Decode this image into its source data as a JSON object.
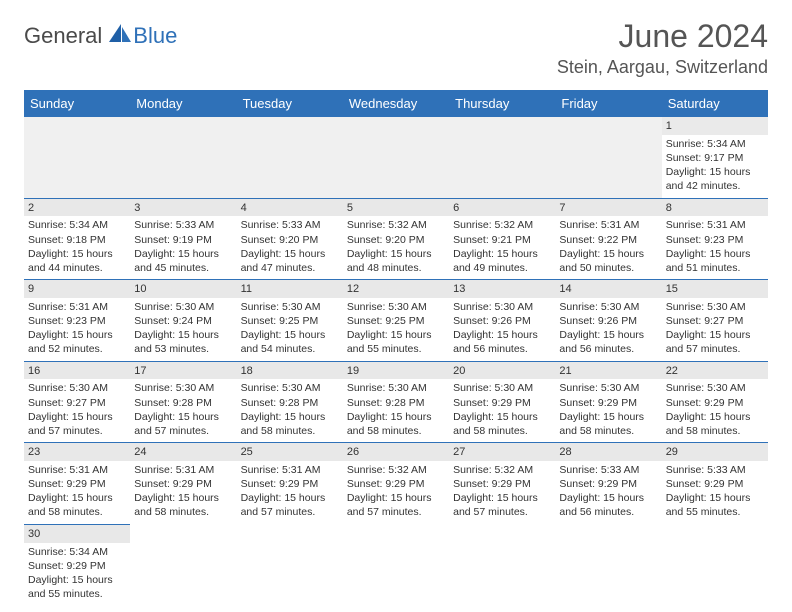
{
  "logo": {
    "text1": "General",
    "text2": "Blue"
  },
  "title": "June 2024",
  "location": "Stein, Aargau, Switzerland",
  "colors": {
    "header_bg": "#2f71b8",
    "header_fg": "#ffffff",
    "rule": "#2f71b8",
    "dn_bg": "#e8e8e8"
  },
  "typography": {
    "title_size": 32,
    "location_size": 18,
    "th_size": 13,
    "cell_size": 10.5
  },
  "weekdays": [
    "Sunday",
    "Monday",
    "Tuesday",
    "Wednesday",
    "Thursday",
    "Friday",
    "Saturday"
  ],
  "weeks": [
    [
      null,
      null,
      null,
      null,
      null,
      null,
      {
        "n": "1",
        "sr": "Sunrise: 5:34 AM",
        "ss": "Sunset: 9:17 PM",
        "d1": "Daylight: 15 hours",
        "d2": "and 42 minutes."
      }
    ],
    [
      {
        "n": "2",
        "sr": "Sunrise: 5:34 AM",
        "ss": "Sunset: 9:18 PM",
        "d1": "Daylight: 15 hours",
        "d2": "and 44 minutes."
      },
      {
        "n": "3",
        "sr": "Sunrise: 5:33 AM",
        "ss": "Sunset: 9:19 PM",
        "d1": "Daylight: 15 hours",
        "d2": "and 45 minutes."
      },
      {
        "n": "4",
        "sr": "Sunrise: 5:33 AM",
        "ss": "Sunset: 9:20 PM",
        "d1": "Daylight: 15 hours",
        "d2": "and 47 minutes."
      },
      {
        "n": "5",
        "sr": "Sunrise: 5:32 AM",
        "ss": "Sunset: 9:20 PM",
        "d1": "Daylight: 15 hours",
        "d2": "and 48 minutes."
      },
      {
        "n": "6",
        "sr": "Sunrise: 5:32 AM",
        "ss": "Sunset: 9:21 PM",
        "d1": "Daylight: 15 hours",
        "d2": "and 49 minutes."
      },
      {
        "n": "7",
        "sr": "Sunrise: 5:31 AM",
        "ss": "Sunset: 9:22 PM",
        "d1": "Daylight: 15 hours",
        "d2": "and 50 minutes."
      },
      {
        "n": "8",
        "sr": "Sunrise: 5:31 AM",
        "ss": "Sunset: 9:23 PM",
        "d1": "Daylight: 15 hours",
        "d2": "and 51 minutes."
      }
    ],
    [
      {
        "n": "9",
        "sr": "Sunrise: 5:31 AM",
        "ss": "Sunset: 9:23 PM",
        "d1": "Daylight: 15 hours",
        "d2": "and 52 minutes."
      },
      {
        "n": "10",
        "sr": "Sunrise: 5:30 AM",
        "ss": "Sunset: 9:24 PM",
        "d1": "Daylight: 15 hours",
        "d2": "and 53 minutes."
      },
      {
        "n": "11",
        "sr": "Sunrise: 5:30 AM",
        "ss": "Sunset: 9:25 PM",
        "d1": "Daylight: 15 hours",
        "d2": "and 54 minutes."
      },
      {
        "n": "12",
        "sr": "Sunrise: 5:30 AM",
        "ss": "Sunset: 9:25 PM",
        "d1": "Daylight: 15 hours",
        "d2": "and 55 minutes."
      },
      {
        "n": "13",
        "sr": "Sunrise: 5:30 AM",
        "ss": "Sunset: 9:26 PM",
        "d1": "Daylight: 15 hours",
        "d2": "and 56 minutes."
      },
      {
        "n": "14",
        "sr": "Sunrise: 5:30 AM",
        "ss": "Sunset: 9:26 PM",
        "d1": "Daylight: 15 hours",
        "d2": "and 56 minutes."
      },
      {
        "n": "15",
        "sr": "Sunrise: 5:30 AM",
        "ss": "Sunset: 9:27 PM",
        "d1": "Daylight: 15 hours",
        "d2": "and 57 minutes."
      }
    ],
    [
      {
        "n": "16",
        "sr": "Sunrise: 5:30 AM",
        "ss": "Sunset: 9:27 PM",
        "d1": "Daylight: 15 hours",
        "d2": "and 57 minutes."
      },
      {
        "n": "17",
        "sr": "Sunrise: 5:30 AM",
        "ss": "Sunset: 9:28 PM",
        "d1": "Daylight: 15 hours",
        "d2": "and 57 minutes."
      },
      {
        "n": "18",
        "sr": "Sunrise: 5:30 AM",
        "ss": "Sunset: 9:28 PM",
        "d1": "Daylight: 15 hours",
        "d2": "and 58 minutes."
      },
      {
        "n": "19",
        "sr": "Sunrise: 5:30 AM",
        "ss": "Sunset: 9:28 PM",
        "d1": "Daylight: 15 hours",
        "d2": "and 58 minutes."
      },
      {
        "n": "20",
        "sr": "Sunrise: 5:30 AM",
        "ss": "Sunset: 9:29 PM",
        "d1": "Daylight: 15 hours",
        "d2": "and 58 minutes."
      },
      {
        "n": "21",
        "sr": "Sunrise: 5:30 AM",
        "ss": "Sunset: 9:29 PM",
        "d1": "Daylight: 15 hours",
        "d2": "and 58 minutes."
      },
      {
        "n": "22",
        "sr": "Sunrise: 5:30 AM",
        "ss": "Sunset: 9:29 PM",
        "d1": "Daylight: 15 hours",
        "d2": "and 58 minutes."
      }
    ],
    [
      {
        "n": "23",
        "sr": "Sunrise: 5:31 AM",
        "ss": "Sunset: 9:29 PM",
        "d1": "Daylight: 15 hours",
        "d2": "and 58 minutes."
      },
      {
        "n": "24",
        "sr": "Sunrise: 5:31 AM",
        "ss": "Sunset: 9:29 PM",
        "d1": "Daylight: 15 hours",
        "d2": "and 58 minutes."
      },
      {
        "n": "25",
        "sr": "Sunrise: 5:31 AM",
        "ss": "Sunset: 9:29 PM",
        "d1": "Daylight: 15 hours",
        "d2": "and 57 minutes."
      },
      {
        "n": "26",
        "sr": "Sunrise: 5:32 AM",
        "ss": "Sunset: 9:29 PM",
        "d1": "Daylight: 15 hours",
        "d2": "and 57 minutes."
      },
      {
        "n": "27",
        "sr": "Sunrise: 5:32 AM",
        "ss": "Sunset: 9:29 PM",
        "d1": "Daylight: 15 hours",
        "d2": "and 57 minutes."
      },
      {
        "n": "28",
        "sr": "Sunrise: 5:33 AM",
        "ss": "Sunset: 9:29 PM",
        "d1": "Daylight: 15 hours",
        "d2": "and 56 minutes."
      },
      {
        "n": "29",
        "sr": "Sunrise: 5:33 AM",
        "ss": "Sunset: 9:29 PM",
        "d1": "Daylight: 15 hours",
        "d2": "and 55 minutes."
      }
    ],
    [
      {
        "n": "30",
        "sr": "Sunrise: 5:34 AM",
        "ss": "Sunset: 9:29 PM",
        "d1": "Daylight: 15 hours",
        "d2": "and 55 minutes."
      },
      null,
      null,
      null,
      null,
      null,
      null
    ]
  ]
}
